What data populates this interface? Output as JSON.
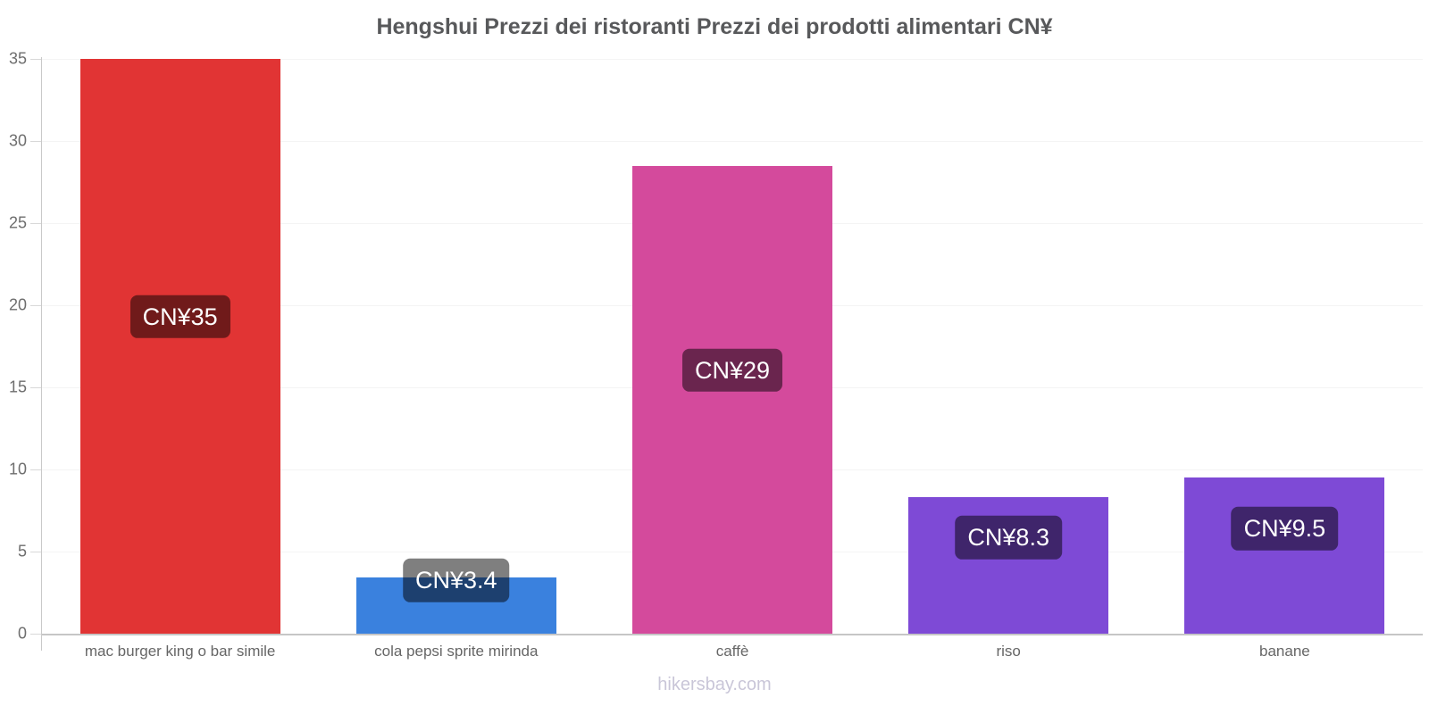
{
  "page": {
    "footer_text": "hikersbay.com"
  },
  "chart_data": {
    "type": "bar",
    "title": "Hengshui Prezzi dei ristoranti Prezzi dei prodotti alimentari CN¥",
    "currency": "CN¥",
    "categories": [
      "mac burger king o bar simile",
      "cola pepsi sprite mirinda",
      "caffè",
      "riso",
      "banane"
    ],
    "values": [
      35,
      3.4,
      28.5,
      8.3,
      9.5
    ],
    "value_labels": [
      "CN¥35",
      "CN¥3.4",
      "CN¥29",
      "CN¥8.3",
      "CN¥9.5"
    ],
    "bar_colors": [
      "#e13434",
      "#3a81de",
      "#d44a9c",
      "#7e4ad6",
      "#7e4ad6"
    ],
    "badge_color": "rgba(0,0,0,0.5)",
    "badge_text_color": "#ffffff",
    "ylim": [
      0,
      35
    ],
    "yticks": [
      0,
      5,
      10,
      15,
      20,
      25,
      30,
      35
    ],
    "xlabel": "",
    "ylabel": "",
    "legend_position": "none",
    "grid": "horizontal-faint",
    "title_color": "#58595b",
    "axis_label_color": "#6e6e6e",
    "footer_color": "#c9c6d8"
  }
}
